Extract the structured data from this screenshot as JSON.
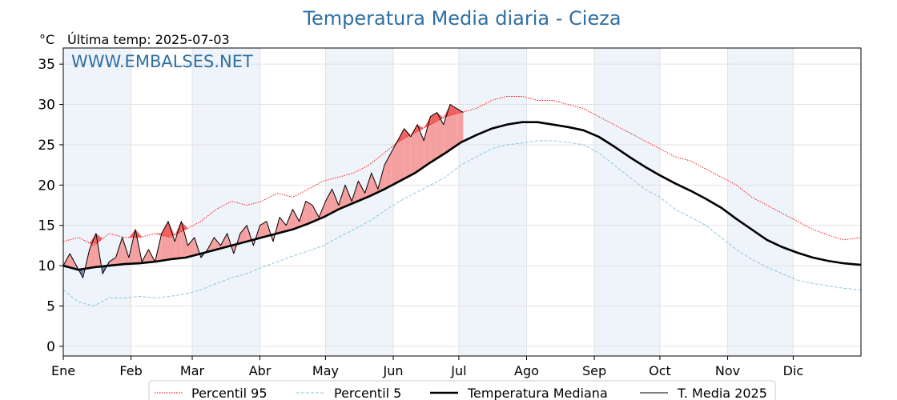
{
  "chart_data": {
    "type": "line",
    "title": "Temperatura Media diaria - Cieza",
    "unit": "°C",
    "last_temp_label": "Última temp: 2025-07-03",
    "watermark": "WWW.EMBALSES.NET",
    "months": [
      "Ene",
      "Feb",
      "Mar",
      "Abr",
      "May",
      "Jun",
      "Jul",
      "Ago",
      "Sep",
      "Oct",
      "Nov",
      "Dic"
    ],
    "month_start_days": [
      1,
      32,
      60,
      91,
      121,
      152,
      182,
      213,
      244,
      274,
      305,
      335
    ],
    "xlim": [
      1,
      366
    ],
    "ylim": [
      -1.2,
      37
    ],
    "yticks": [
      0,
      5,
      10,
      15,
      20,
      25,
      30,
      35
    ],
    "grid": true,
    "legend": "bottom",
    "colors": {
      "p95": "#ff0000",
      "p5": "#8ec9dc",
      "median": "#000000",
      "current": "#000000",
      "above": "#f4a0a0",
      "above_p95": "#f06262",
      "below": "#5b88b4",
      "band": "#eef4fa"
    },
    "series": [
      {
        "name": "Percentil 95",
        "style": "dotted-red",
        "points": [
          [
            1,
            13
          ],
          [
            8,
            13.5
          ],
          [
            15,
            12.5
          ],
          [
            22,
            14
          ],
          [
            29,
            13.5
          ],
          [
            36,
            13.5
          ],
          [
            43,
            14
          ],
          [
            50,
            13.5
          ],
          [
            57,
            14.5
          ],
          [
            64,
            15.5
          ],
          [
            71,
            17
          ],
          [
            78,
            18
          ],
          [
            85,
            17.5
          ],
          [
            92,
            18
          ],
          [
            99,
            19
          ],
          [
            106,
            18.5
          ],
          [
            113,
            19.5
          ],
          [
            120,
            20.5
          ],
          [
            127,
            21
          ],
          [
            134,
            21.5
          ],
          [
            141,
            22.5
          ],
          [
            148,
            24
          ],
          [
            155,
            25.5
          ],
          [
            162,
            26.5
          ],
          [
            169,
            27.5
          ],
          [
            176,
            28.5
          ],
          [
            183,
            29
          ],
          [
            190,
            29.5
          ],
          [
            197,
            30.5
          ],
          [
            204,
            31
          ],
          [
            211,
            31
          ],
          [
            218,
            30.5
          ],
          [
            225,
            30.5
          ],
          [
            232,
            30
          ],
          [
            239,
            29.5
          ],
          [
            246,
            28.5
          ],
          [
            253,
            27.5
          ],
          [
            260,
            26.5
          ],
          [
            267,
            25.5
          ],
          [
            274,
            24.5
          ],
          [
            281,
            23.5
          ],
          [
            288,
            23
          ],
          [
            295,
            22
          ],
          [
            302,
            21
          ],
          [
            309,
            20
          ],
          [
            316,
            18.5
          ],
          [
            323,
            17.5
          ],
          [
            330,
            16.5
          ],
          [
            337,
            15.5
          ],
          [
            344,
            14.5
          ],
          [
            351,
            13.8
          ],
          [
            358,
            13.2
          ],
          [
            366,
            13.5
          ]
        ]
      },
      {
        "name": "Percentil 5",
        "style": "dashed-lightblue",
        "points": [
          [
            1,
            7
          ],
          [
            8,
            5.5
          ],
          [
            15,
            5
          ],
          [
            22,
            6
          ],
          [
            29,
            6
          ],
          [
            36,
            6.2
          ],
          [
            43,
            6
          ],
          [
            50,
            6.2
          ],
          [
            57,
            6.5
          ],
          [
            64,
            7
          ],
          [
            71,
            7.8
          ],
          [
            78,
            8.5
          ],
          [
            85,
            9
          ],
          [
            92,
            9.8
          ],
          [
            99,
            10.5
          ],
          [
            106,
            11.2
          ],
          [
            113,
            11.8
          ],
          [
            120,
            12.5
          ],
          [
            127,
            13.5
          ],
          [
            134,
            14.5
          ],
          [
            141,
            15.5
          ],
          [
            148,
            16.8
          ],
          [
            155,
            18
          ],
          [
            162,
            19
          ],
          [
            169,
            20
          ],
          [
            176,
            21
          ],
          [
            183,
            22.5
          ],
          [
            190,
            23.5
          ],
          [
            197,
            24.5
          ],
          [
            204,
            25
          ],
          [
            211,
            25.2
          ],
          [
            218,
            25.5
          ],
          [
            225,
            25.5
          ],
          [
            232,
            25.3
          ],
          [
            239,
            25
          ],
          [
            246,
            24
          ],
          [
            253,
            22.5
          ],
          [
            260,
            21
          ],
          [
            267,
            19.5
          ],
          [
            274,
            18.5
          ],
          [
            281,
            17
          ],
          [
            288,
            16
          ],
          [
            295,
            15
          ],
          [
            302,
            13.5
          ],
          [
            309,
            12
          ],
          [
            316,
            10.8
          ],
          [
            323,
            9.8
          ],
          [
            330,
            9
          ],
          [
            337,
            8.2
          ],
          [
            344,
            7.8
          ],
          [
            351,
            7.5
          ],
          [
            358,
            7.2
          ],
          [
            366,
            7
          ]
        ]
      },
      {
        "name": "Temperatura Mediana",
        "style": "thick-black",
        "points": [
          [
            1,
            10
          ],
          [
            8,
            9.5
          ],
          [
            15,
            9.8
          ],
          [
            22,
            10
          ],
          [
            29,
            10.2
          ],
          [
            36,
            10.3
          ],
          [
            43,
            10.5
          ],
          [
            50,
            10.8
          ],
          [
            57,
            11
          ],
          [
            64,
            11.5
          ],
          [
            71,
            12
          ],
          [
            78,
            12.5
          ],
          [
            85,
            13
          ],
          [
            92,
            13.5
          ],
          [
            99,
            14
          ],
          [
            106,
            14.5
          ],
          [
            113,
            15.2
          ],
          [
            120,
            16
          ],
          [
            127,
            17
          ],
          [
            134,
            17.8
          ],
          [
            141,
            18.6
          ],
          [
            148,
            19.5
          ],
          [
            155,
            20.5
          ],
          [
            162,
            21.5
          ],
          [
            169,
            22.8
          ],
          [
            176,
            24
          ],
          [
            183,
            25.3
          ],
          [
            190,
            26.2
          ],
          [
            197,
            27
          ],
          [
            204,
            27.5
          ],
          [
            211,
            27.8
          ],
          [
            218,
            27.8
          ],
          [
            225,
            27.5
          ],
          [
            232,
            27.2
          ],
          [
            239,
            26.8
          ],
          [
            246,
            26
          ],
          [
            253,
            24.8
          ],
          [
            260,
            23.5
          ],
          [
            267,
            22.3
          ],
          [
            274,
            21.2
          ],
          [
            281,
            20.2
          ],
          [
            288,
            19.3
          ],
          [
            295,
            18.3
          ],
          [
            302,
            17.2
          ],
          [
            309,
            15.8
          ],
          [
            316,
            14.5
          ],
          [
            323,
            13.2
          ],
          [
            330,
            12.3
          ],
          [
            337,
            11.6
          ],
          [
            344,
            11
          ],
          [
            351,
            10.6
          ],
          [
            358,
            10.3
          ],
          [
            366,
            10.1
          ]
        ]
      },
      {
        "name": "T. Media 2025",
        "style": "thin-black",
        "points": [
          [
            1,
            10
          ],
          [
            4,
            11.5
          ],
          [
            7,
            10
          ],
          [
            10,
            8.5
          ],
          [
            13,
            12
          ],
          [
            16,
            14
          ],
          [
            19,
            9
          ],
          [
            22,
            10.5
          ],
          [
            25,
            11
          ],
          [
            28,
            13.5
          ],
          [
            31,
            11
          ],
          [
            34,
            14.5
          ],
          [
            37,
            10.5
          ],
          [
            40,
            12
          ],
          [
            43,
            10.5
          ],
          [
            46,
            14
          ],
          [
            49,
            15.5
          ],
          [
            52,
            13
          ],
          [
            55,
            15.5
          ],
          [
            58,
            12.5
          ],
          [
            61,
            13.5
          ],
          [
            64,
            11
          ],
          [
            67,
            12
          ],
          [
            70,
            13.5
          ],
          [
            73,
            12.5
          ],
          [
            76,
            14
          ],
          [
            79,
            11.5
          ],
          [
            82,
            14
          ],
          [
            85,
            15
          ],
          [
            88,
            12.5
          ],
          [
            91,
            15
          ],
          [
            94,
            15.5
          ],
          [
            97,
            13
          ],
          [
            100,
            16
          ],
          [
            103,
            15
          ],
          [
            106,
            17
          ],
          [
            109,
            15.5
          ],
          [
            112,
            18
          ],
          [
            115,
            17.5
          ],
          [
            118,
            16
          ],
          [
            121,
            18
          ],
          [
            124,
            19.5
          ],
          [
            127,
            17.5
          ],
          [
            130,
            20
          ],
          [
            133,
            18
          ],
          [
            136,
            20.5
          ],
          [
            139,
            19
          ],
          [
            142,
            21.5
          ],
          [
            145,
            19.5
          ],
          [
            148,
            22.5
          ],
          [
            151,
            24
          ],
          [
            154,
            25.5
          ],
          [
            157,
            27
          ],
          [
            160,
            26
          ],
          [
            163,
            27.5
          ],
          [
            166,
            25.5
          ],
          [
            169,
            28.5
          ],
          [
            172,
            29
          ],
          [
            175,
            27.5
          ],
          [
            178,
            30
          ],
          [
            181,
            29.5
          ],
          [
            184,
            29
          ]
        ]
      }
    ]
  },
  "legend": {
    "items": [
      {
        "label": "Percentil 95"
      },
      {
        "label": "Percentil 5"
      },
      {
        "label": "Temperatura Mediana"
      },
      {
        "label": "T. Media 2025"
      }
    ]
  }
}
